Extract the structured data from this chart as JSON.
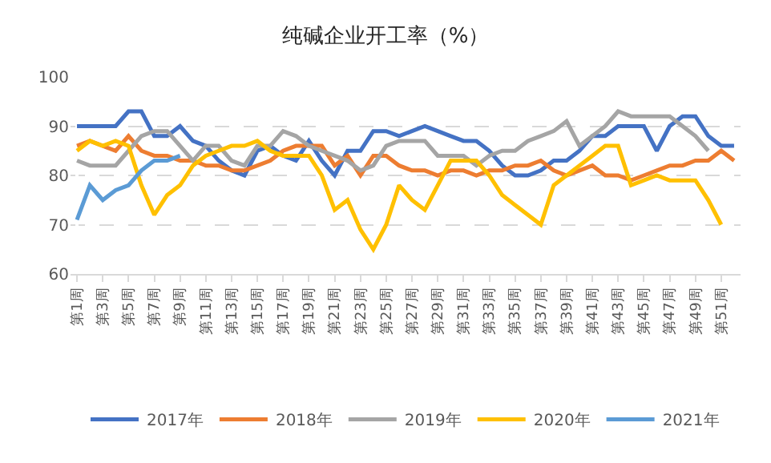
{
  "chart_data": {
    "type": "line",
    "title": "纯碱企业开工率（%）",
    "categories": [
      "第1周",
      null,
      "第3周",
      null,
      "第5周",
      null,
      "第7周",
      null,
      "第9周",
      null,
      "第11周",
      null,
      "第13周",
      null,
      "第15周",
      null,
      "第17周",
      null,
      "第19周",
      null,
      "第21周",
      null,
      "第23周",
      null,
      "第25周",
      null,
      "第27周",
      null,
      "第29周",
      null,
      "第31周",
      null,
      "第33周",
      null,
      "第35周",
      null,
      "第37周",
      null,
      "第39周",
      null,
      "第41周",
      null,
      "第43周",
      null,
      "第45周",
      null,
      "第47周",
      null,
      "第49周",
      null,
      "第51周",
      null
    ],
    "series": [
      {
        "name": "2017年",
        "color": "#4472c4",
        "values": [
          90,
          90,
          90,
          90,
          93,
          93,
          88,
          88,
          90,
          87,
          86,
          83,
          81,
          80,
          85,
          86,
          84,
          83,
          87,
          83,
          80,
          85,
          85,
          89,
          89,
          88,
          89,
          90,
          89,
          88,
          87,
          87,
          85,
          82,
          80,
          80,
          81,
          83,
          83,
          85,
          88,
          88,
          90,
          90,
          90,
          85,
          90,
          92,
          92,
          88,
          86,
          86
        ]
      },
      {
        "name": "2018年",
        "color": "#ed7d31",
        "values": [
          86,
          87,
          86,
          85,
          88,
          85,
          84,
          84,
          83,
          83,
          82,
          82,
          81,
          81,
          82,
          83,
          85,
          86,
          86,
          86,
          82,
          84,
          80,
          84,
          84,
          82,
          81,
          81,
          80,
          81,
          81,
          80,
          81,
          81,
          82,
          82,
          83,
          81,
          80,
          81,
          82,
          80,
          80,
          79,
          80,
          81,
          82,
          82,
          83,
          83,
          85,
          83
        ]
      },
      {
        "name": "2019年",
        "color": "#a5a5a5",
        "values": [
          83,
          82,
          82,
          82,
          85,
          88,
          89,
          89,
          86,
          83,
          86,
          86,
          83,
          82,
          86,
          86,
          89,
          88,
          86,
          85,
          84,
          83,
          81,
          82,
          86,
          87,
          87,
          87,
          84,
          84,
          84,
          82,
          84,
          85,
          85,
          87,
          88,
          89,
          91,
          86,
          88,
          90,
          93,
          92,
          92,
          92,
          92,
          90,
          88,
          85,
          null,
          null
        ]
      },
      {
        "name": "2020年",
        "color": "#ffc000",
        "values": [
          85,
          87,
          86,
          87,
          86,
          78,
          72,
          76,
          78,
          82,
          84,
          85,
          86,
          86,
          87,
          85,
          84,
          84,
          84,
          80,
          73,
          75,
          69,
          65,
          70,
          78,
          75,
          73,
          78,
          83,
          83,
          83,
          80,
          76,
          74,
          72,
          70,
          78,
          80,
          82,
          84,
          86,
          86,
          78,
          79,
          80,
          79,
          79,
          79,
          75,
          70,
          null
        ]
      },
      {
        "name": "2021年",
        "color": "#5b9bd5",
        "values": [
          71,
          78,
          75,
          77,
          78,
          81,
          83,
          83,
          84,
          null,
          null,
          null,
          null,
          null,
          null,
          null,
          null,
          null,
          null,
          null,
          null,
          null,
          null,
          null,
          null,
          null,
          null,
          null,
          null,
          null,
          null,
          null,
          null,
          null,
          null,
          null,
          null,
          null,
          null,
          null,
          null,
          null,
          null,
          null,
          null,
          null,
          null,
          null,
          null,
          null,
          null,
          null
        ]
      }
    ],
    "ylim": [
      60,
      100
    ],
    "yticks": [
      60,
      70,
      80,
      90,
      100
    ],
    "grid": "y",
    "legend": "bottom",
    "marker": "none",
    "line_style": "solid"
  }
}
